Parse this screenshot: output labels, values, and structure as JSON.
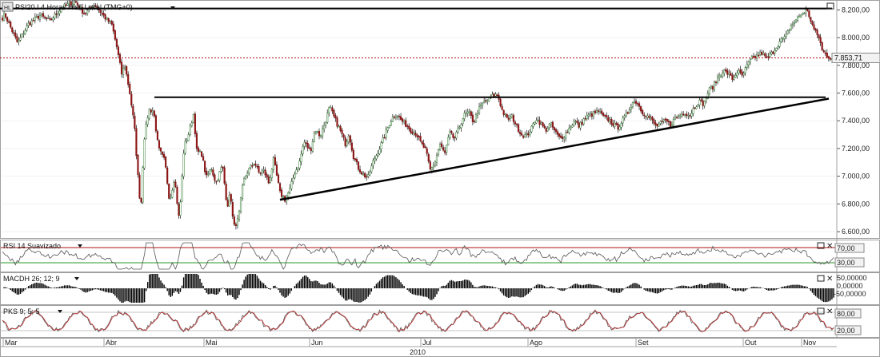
{
  "colors": {
    "up": "#2f7a2f",
    "down": "#8b1414",
    "wick": "#111111",
    "trendline": "#000000",
    "last_price_line": "#b01010",
    "rsi_line": "#555555",
    "rsi_upper": "#b01010",
    "rsi_lower": "#2a9a2a",
    "stoch_k": "#555555",
    "stoch_d": "#c03030",
    "macd_bar": "#000000",
    "label_bg": "#f2f2f2"
  },
  "icons": [
    "chart-type-icon",
    "maximize-icon",
    "close-icon",
    "dropdown-arrow-icon"
  ],
  "chart_data": [
    {
      "type": "candlestick",
      "title": "PSI20.I 4 Horas Hist. Local (TMG+0)",
      "yticks": [
        6600,
        6800,
        7000,
        7200,
        7400,
        7600,
        7800,
        8000,
        8200
      ],
      "ytick_labels": [
        "6.600,00",
        "6.800,00",
        "7.000,00",
        "7.200,00",
        "7.400,00",
        "7.600,00",
        "7.800,00",
        "8.000,00",
        "8.200,00"
      ],
      "ylim": [
        6560,
        8260
      ],
      "last_value": 7853.71,
      "last_label": "7.853,71",
      "x_year": "2010",
      "x_months": [
        "Mar",
        "Abr",
        "Mai",
        "Jun",
        "Jul",
        "Ago",
        "Set",
        "Out",
        "Nov"
      ],
      "bars": 510,
      "anchors": [
        [
          0,
          8120
        ],
        [
          6,
          8170
        ],
        [
          12,
          8090
        ],
        [
          22,
          7960
        ],
        [
          36,
          8100
        ],
        [
          50,
          8160
        ],
        [
          62,
          8120
        ],
        [
          78,
          8220
        ],
        [
          94,
          8260
        ],
        [
          106,
          8170
        ],
        [
          118,
          8240
        ],
        [
          132,
          8140
        ],
        [
          140,
          8090
        ],
        [
          146,
          7930
        ],
        [
          152,
          7740
        ],
        [
          156,
          7800
        ],
        [
          162,
          7610
        ],
        [
          168,
          7360
        ],
        [
          172,
          7030
        ],
        [
          176,
          6750
        ],
        [
          180,
          7260
        ],
        [
          186,
          7480
        ],
        [
          192,
          7470
        ],
        [
          198,
          7200
        ],
        [
          206,
          7110
        ],
        [
          212,
          6820
        ],
        [
          218,
          6990
        ],
        [
          224,
          6680
        ],
        [
          230,
          7210
        ],
        [
          236,
          7310
        ],
        [
          242,
          7450
        ],
        [
          246,
          7180
        ],
        [
          252,
          7160
        ],
        [
          258,
          6990
        ],
        [
          264,
          7060
        ],
        [
          270,
          6950
        ],
        [
          278,
          7080
        ],
        [
          284,
          6780
        ],
        [
          288,
          6880
        ],
        [
          292,
          6630
        ],
        [
          298,
          6690
        ],
        [
          304,
          6960
        ],
        [
          310,
          7040
        ],
        [
          318,
          7100
        ],
        [
          324,
          7020
        ],
        [
          330,
          7040
        ],
        [
          336,
          6950
        ],
        [
          342,
          7120
        ],
        [
          350,
          6880
        ],
        [
          356,
          6830
        ],
        [
          362,
          6900
        ],
        [
          368,
          7020
        ],
        [
          374,
          7090
        ],
        [
          380,
          7250
        ],
        [
          388,
          7180
        ],
        [
          394,
          7340
        ],
        [
          400,
          7290
        ],
        [
          406,
          7380
        ],
        [
          412,
          7500
        ],
        [
          418,
          7420
        ],
        [
          426,
          7320
        ],
        [
          432,
          7230
        ],
        [
          436,
          7310
        ],
        [
          442,
          7140
        ],
        [
          448,
          7060
        ],
        [
          454,
          7010
        ],
        [
          460,
          6990
        ],
        [
          466,
          7100
        ],
        [
          472,
          7170
        ],
        [
          478,
          7250
        ],
        [
          484,
          7340
        ],
        [
          490,
          7420
        ],
        [
          496,
          7450
        ],
        [
          502,
          7400
        ],
        [
          508,
          7370
        ],
        [
          514,
          7330
        ],
        [
          520,
          7310
        ],
        [
          526,
          7240
        ],
        [
          532,
          7190
        ],
        [
          538,
          7040
        ],
        [
          544,
          7110
        ],
        [
          550,
          7230
        ],
        [
          556,
          7160
        ],
        [
          562,
          7310
        ],
        [
          568,
          7270
        ],
        [
          574,
          7350
        ],
        [
          580,
          7440
        ],
        [
          586,
          7460
        ],
        [
          592,
          7390
        ],
        [
          598,
          7480
        ],
        [
          604,
          7530
        ],
        [
          610,
          7550
        ],
        [
          616,
          7580
        ],
        [
          622,
          7590
        ],
        [
          628,
          7470
        ],
        [
          634,
          7410
        ],
        [
          640,
          7430
        ],
        [
          646,
          7360
        ],
        [
          652,
          7300
        ],
        [
          658,
          7290
        ],
        [
          664,
          7340
        ],
        [
          670,
          7420
        ],
        [
          676,
          7380
        ],
        [
          682,
          7330
        ],
        [
          688,
          7380
        ],
        [
          694,
          7320
        ],
        [
          700,
          7270
        ],
        [
          706,
          7300
        ],
        [
          712,
          7350
        ],
        [
          718,
          7400
        ],
        [
          724,
          7360
        ],
        [
          730,
          7410
        ],
        [
          736,
          7440
        ],
        [
          742,
          7450
        ],
        [
          748,
          7470
        ],
        [
          754,
          7430
        ],
        [
          760,
          7410
        ],
        [
          766,
          7380
        ],
        [
          772,
          7350
        ],
        [
          778,
          7400
        ],
        [
          784,
          7450
        ],
        [
          790,
          7530
        ],
        [
          796,
          7540
        ],
        [
          802,
          7470
        ],
        [
          808,
          7440
        ],
        [
          814,
          7410
        ],
        [
          820,
          7360
        ],
        [
          826,
          7380
        ],
        [
          832,
          7400
        ],
        [
          838,
          7370
        ],
        [
          844,
          7420
        ],
        [
          850,
          7440
        ],
        [
          856,
          7460
        ],
        [
          862,
          7440
        ],
        [
          868,
          7500
        ],
        [
          874,
          7540
        ],
        [
          880,
          7520
        ],
        [
          886,
          7620
        ],
        [
          892,
          7650
        ],
        [
          898,
          7720
        ],
        [
          904,
          7760
        ],
        [
          910,
          7740
        ],
        [
          916,
          7700
        ],
        [
          922,
          7760
        ],
        [
          928,
          7720
        ],
        [
          934,
          7800
        ],
        [
          940,
          7850
        ],
        [
          946,
          7870
        ],
        [
          952,
          7890
        ],
        [
          958,
          7850
        ],
        [
          964,
          7880
        ],
        [
          970,
          7930
        ],
        [
          976,
          7980
        ],
        [
          982,
          8000
        ],
        [
          988,
          8080
        ],
        [
          994,
          8120
        ],
        [
          1000,
          8160
        ],
        [
          1004,
          8180
        ],
        [
          1008,
          8200
        ],
        [
          1012,
          8150
        ],
        [
          1016,
          8080
        ],
        [
          1020,
          8030
        ],
        [
          1024,
          8000
        ],
        [
          1028,
          7900
        ],
        [
          1032,
          7880
        ],
        [
          1036,
          7860
        ],
        [
          1040,
          7853.71
        ]
      ]
    },
    {
      "type": "line",
      "title": "RSI 14 Suavizado",
      "ytick_labels": [
        "70,00",
        "30,00"
      ],
      "levels": [
        70,
        30
      ]
    },
    {
      "type": "bar",
      "title": "MACDH 26; 12; 9",
      "ytick_labels": [
        "50,00000",
        "0,00000",
        "-50,00000"
      ]
    },
    {
      "type": "line",
      "title": "PKS 9; 5; 5",
      "ytick_labels": [
        "80,00",
        "20,00"
      ],
      "levels": [
        80,
        20
      ]
    }
  ]
}
